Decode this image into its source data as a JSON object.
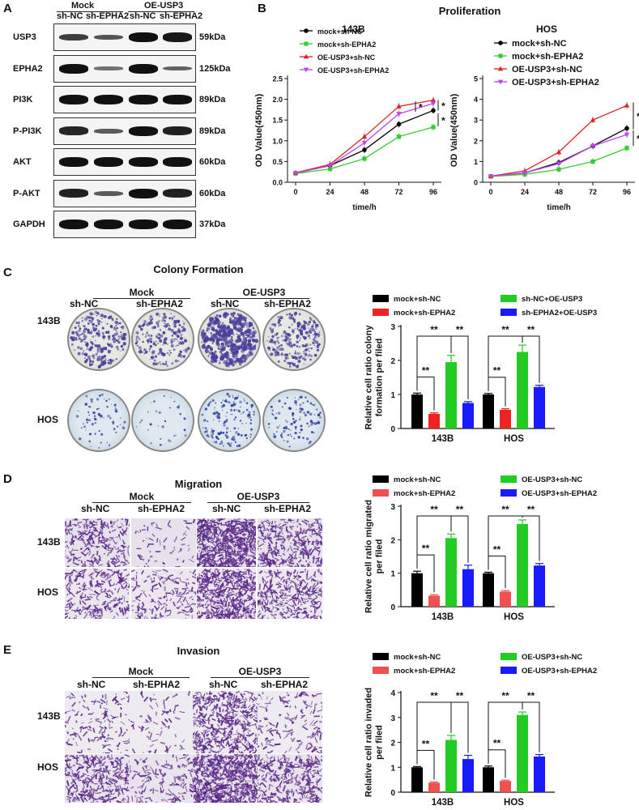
{
  "panels": {
    "a": "A",
    "b": "B",
    "c": "C",
    "d": "D",
    "e": "E"
  },
  "western": {
    "groups": [
      "Mock",
      "OE-USP3"
    ],
    "columns": [
      "sh-NC",
      "sh-EPHA2",
      "sh-NC",
      "sh-EPHA2"
    ],
    "rows": [
      {
        "label": "USP3",
        "kda": "59kDa",
        "intensity": [
          0.7,
          0.55,
          1.0,
          0.95
        ]
      },
      {
        "label": "EPHA2",
        "kda": "125kDa",
        "intensity": [
          1.0,
          0.35,
          1.0,
          0.45
        ]
      },
      {
        "label": "PI3K",
        "kda": "89kDa",
        "intensity": [
          1.0,
          1.0,
          1.0,
          1.0
        ]
      },
      {
        "label": "P-PI3K",
        "kda": "89kDa",
        "intensity": [
          0.85,
          0.5,
          1.0,
          0.9
        ]
      },
      {
        "label": "AKT",
        "kda": "60kDa",
        "intensity": [
          1.0,
          1.0,
          1.0,
          1.0
        ]
      },
      {
        "label": "P-AKT",
        "kda": "60kDa",
        "intensity": [
          0.9,
          0.5,
          1.0,
          0.9
        ]
      },
      {
        "label": "GAPDH",
        "kda": "37kDa",
        "intensity": [
          1.0,
          1.0,
          1.0,
          1.0
        ]
      }
    ]
  },
  "proliferation": {
    "title": "Proliferation"
  },
  "colony": {
    "title": "Colony Formation",
    "groups": [
      "Mock",
      "OE-USP3"
    ],
    "columns": [
      "sh-NC",
      "sh-EPHA2",
      "sh-NC",
      "sh-EPHA2"
    ],
    "rows": [
      "143B",
      "HOS"
    ]
  },
  "migration": {
    "title": "Migration",
    "groups": [
      "Mock",
      "OE-USP3"
    ],
    "columns": [
      "sh-NC",
      "sh-EPHA2",
      "sh-NC",
      "sh-EPHA2"
    ],
    "rows": [
      "143B",
      "HOS"
    ]
  },
  "invasion": {
    "title": "Invasion",
    "groups": [
      "Mock",
      "OE-USP3"
    ],
    "columns": [
      "sh-NC",
      "sh-EPHA2",
      "sh-NC",
      "sh-EPHA2"
    ],
    "rows": [
      "143B",
      "HOS"
    ]
  },
  "colors": {
    "black": "#000000",
    "green": "#33cc33",
    "red": "#e02020",
    "red_bar": "#ee2222",
    "red_bar_soft": "#f05050",
    "violet": "#bb44ee",
    "blue": "#1a1aff",
    "stain": "#5b2a8a"
  },
  "chart_data": [
    {
      "type": "line",
      "title": "143B",
      "xlabel": "time/h",
      "ylabel": "OD Value(450nm)",
      "x": [
        0,
        24,
        48,
        72,
        96
      ],
      "ylim": [
        0,
        2.5
      ],
      "yticks": [
        "0.0",
        "0.5",
        "1.0",
        "1.5",
        "2.0",
        "2.5"
      ],
      "series": [
        {
          "name": "mock+sh-NC",
          "values": [
            0.22,
            0.4,
            0.78,
            1.4,
            1.73
          ]
        },
        {
          "name": "mock+sh-EPHA2",
          "values": [
            0.21,
            0.32,
            0.57,
            1.1,
            1.33
          ]
        },
        {
          "name": "OE-USP3+sh-NC",
          "values": [
            0.23,
            0.43,
            1.1,
            1.83,
            1.98
          ]
        },
        {
          "name": "OE-USP3+sh-EPHA2",
          "values": [
            0.22,
            0.4,
            0.95,
            1.65,
            1.9
          ]
        }
      ],
      "annotations": [
        "*",
        "*",
        "*"
      ]
    },
    {
      "type": "line",
      "title": "HOS",
      "xlabel": "time/h",
      "ylabel": "OD Value(450nm)",
      "x": [
        0,
        24,
        48,
        72,
        96
      ],
      "ylim": [
        0,
        5
      ],
      "yticks": [
        "0",
        "1",
        "2",
        "3",
        "4",
        "5"
      ],
      "series": [
        {
          "name": "mock+sh-NC",
          "values": [
            0.28,
            0.45,
            0.95,
            1.75,
            2.6
          ]
        },
        {
          "name": "mock+sh-EPHA2",
          "values": [
            0.28,
            0.38,
            0.62,
            1.0,
            1.65
          ]
        },
        {
          "name": "OE-USP3+sh-NC",
          "values": [
            0.29,
            0.55,
            1.45,
            3.0,
            3.7
          ]
        },
        {
          "name": "OE-USP3+sh-EPHA2",
          "values": [
            0.29,
            0.45,
            0.9,
            1.75,
            2.3
          ]
        }
      ],
      "annotations": [
        "**",
        "*"
      ]
    },
    {
      "type": "bar",
      "ylabel": "Relative cell ratio colony formation per filed",
      "categories": [
        "143B",
        "HOS"
      ],
      "ylim": [
        0,
        3
      ],
      "yticks": [
        "0",
        "1",
        "2",
        "3"
      ],
      "series": [
        {
          "name": "mock+sh-NC",
          "values": [
            1.0,
            1.0
          ],
          "err": [
            0.04,
            0.03
          ]
        },
        {
          "name": "mock+sh-EPHA2",
          "values": [
            0.43,
            0.55
          ],
          "err": [
            0.03,
            0.03
          ]
        },
        {
          "name": "sh-NC+OE-USP3",
          "values": [
            1.95,
            2.25
          ],
          "err": [
            0.2,
            0.2
          ]
        },
        {
          "name": "sh-EPHA2+OE-USP3",
          "values": [
            0.75,
            1.22
          ],
          "err": [
            0.04,
            0.05
          ]
        }
      ],
      "annotations": [
        "**",
        "**",
        "**",
        "**",
        "**",
        "**"
      ]
    },
    {
      "type": "bar",
      "ylabel": "Relative cell ratio migrated per filed",
      "categories": [
        "143B",
        "HOS"
      ],
      "ylim": [
        0,
        3
      ],
      "yticks": [
        "0",
        "1",
        "2",
        "3"
      ],
      "series": [
        {
          "name": "mock+sh-NC",
          "values": [
            1.0,
            1.0
          ],
          "err": [
            0.06,
            0.03
          ]
        },
        {
          "name": "mock+sh-EPHA2",
          "values": [
            0.33,
            0.45
          ],
          "err": [
            0.03,
            0.03
          ]
        },
        {
          "name": "OE-USP3+sh-NC",
          "values": [
            2.05,
            2.47
          ],
          "err": [
            0.12,
            0.12
          ]
        },
        {
          "name": "OE-USP3+sh-EPHA2",
          "values": [
            1.12,
            1.23
          ],
          "err": [
            0.12,
            0.06
          ]
        }
      ],
      "annotations": [
        "**",
        "**",
        "**",
        "**",
        "**",
        "**"
      ]
    },
    {
      "type": "bar",
      "ylabel": "Relative cell ratio invaded per filed",
      "categories": [
        "143B",
        "HOS"
      ],
      "ylim": [
        0,
        4
      ],
      "yticks": [
        "0",
        "1",
        "2",
        "3",
        "4"
      ],
      "series": [
        {
          "name": "mock+sh-NC",
          "values": [
            1.0,
            1.0
          ],
          "err": [
            0.03,
            0.05
          ]
        },
        {
          "name": "mock+sh-EPHA2",
          "values": [
            0.38,
            0.45
          ],
          "err": [
            0.03,
            0.03
          ]
        },
        {
          "name": "OE-USP3+sh-NC",
          "values": [
            2.1,
            3.1
          ],
          "err": [
            0.18,
            0.12
          ]
        },
        {
          "name": "OE-USP3+sh-EPHA2",
          "values": [
            1.33,
            1.43
          ],
          "err": [
            0.15,
            0.08
          ]
        }
      ],
      "annotations": [
        "**",
        "**",
        "**",
        "**",
        "**",
        "**"
      ]
    }
  ]
}
